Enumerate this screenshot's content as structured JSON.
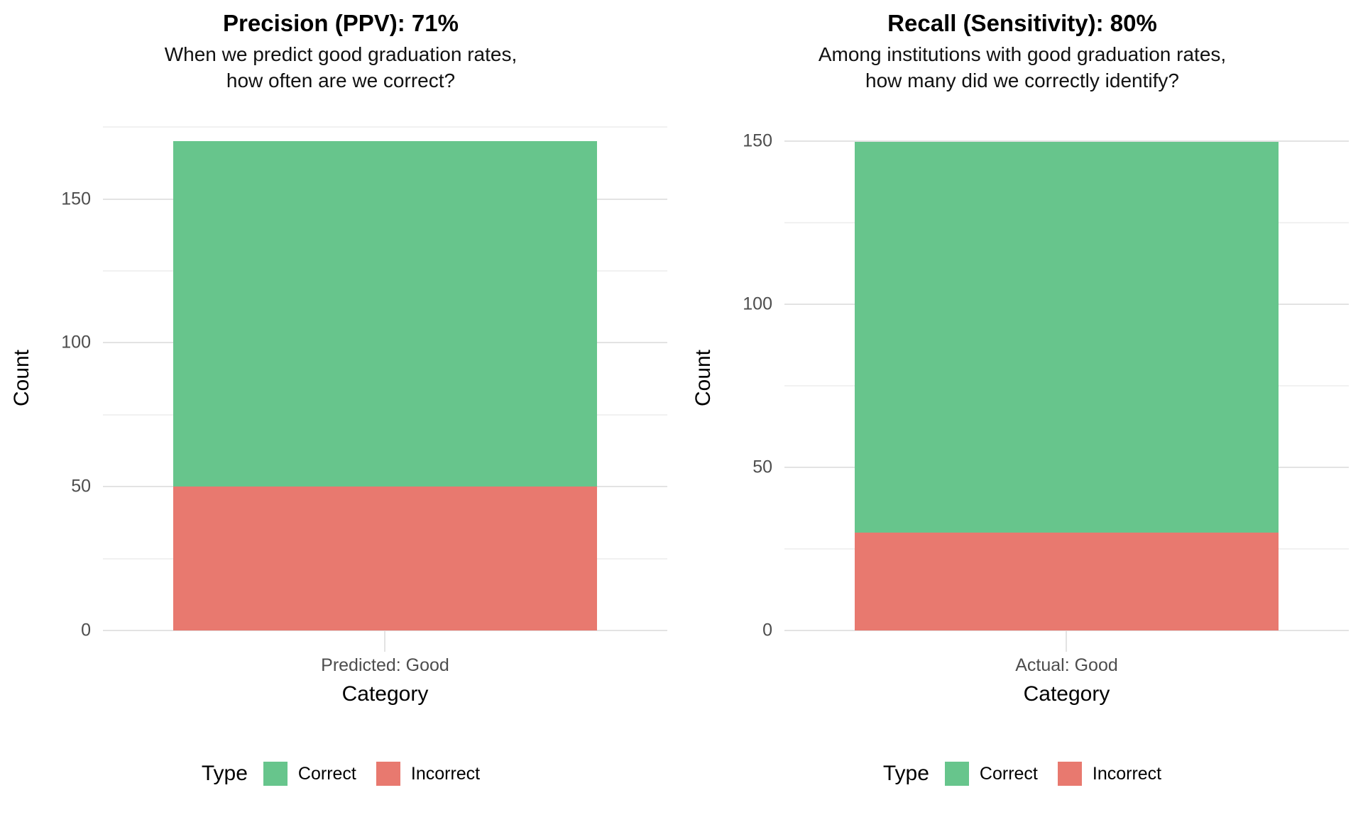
{
  "chart_data": [
    {
      "type": "bar",
      "stacked": true,
      "title": "Precision (PPV): 71%",
      "subtitle": [
        "When we predict good graduation rates,",
        "how often are we correct?"
      ],
      "categories": [
        "Predicted: Good"
      ],
      "series": [
        {
          "name": "Correct",
          "values": [
            120
          ],
          "color": "#67c58c"
        },
        {
          "name": "Incorrect",
          "values": [
            50
          ],
          "color": "#e8796f"
        }
      ],
      "total": 170,
      "xlabel": "Category",
      "ylabel": "Count",
      "yticks": [
        0,
        50,
        100,
        150
      ],
      "minor_tick_step": 25,
      "ylim": [
        0,
        178.5
      ],
      "grid": true,
      "legend_title": "Type",
      "legend_position": "bottom"
    },
    {
      "type": "bar",
      "stacked": true,
      "title": "Recall (Sensitivity): 80%",
      "subtitle": [
        "Among institutions with good graduation rates,",
        "how many did we correctly identify?"
      ],
      "categories": [
        "Actual: Good"
      ],
      "series": [
        {
          "name": "Correct",
          "values": [
            120
          ],
          "color": "#67c58c"
        },
        {
          "name": "Incorrect",
          "values": [
            30
          ],
          "color": "#e8796f"
        }
      ],
      "total": 150,
      "xlabel": "Category",
      "ylabel": "Count",
      "yticks": [
        0,
        50,
        100,
        150
      ],
      "minor_tick_step": 25,
      "ylim": [
        0,
        157.5
      ],
      "grid": true,
      "legend_title": "Type",
      "legend_position": "bottom"
    }
  ],
  "colors": {
    "correct": "#67c58c",
    "incorrect": "#e8796f",
    "grid_major": "#e3e3e3",
    "grid_minor": "#f1f1f1",
    "tick_text": "#4d4d4d"
  }
}
